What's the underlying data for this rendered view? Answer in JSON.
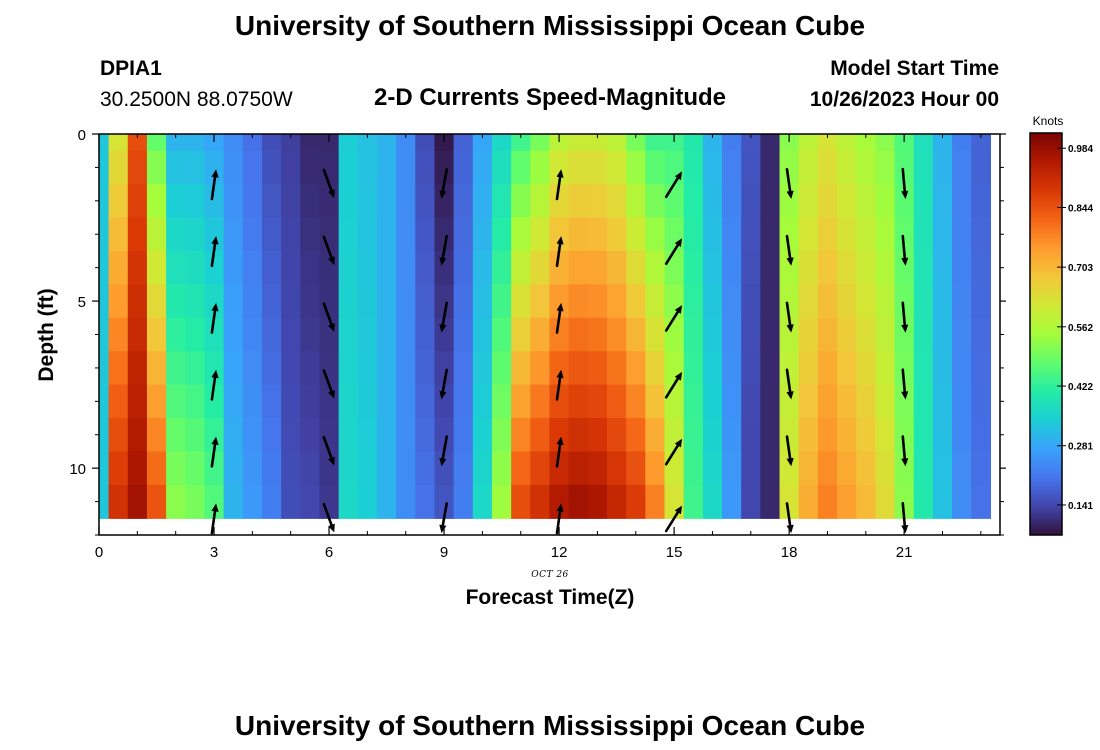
{
  "page_title": "University of Southern Mississippi Ocean Cube",
  "footer_title": "University of Southern Mississippi Ocean Cube",
  "station": {
    "id": "DPIA1",
    "location": "30.2500N  88.0750W"
  },
  "model": {
    "label": "Model Start Time",
    "time": "10/26/2023 Hour 00"
  },
  "chart_data": {
    "type": "heatmap",
    "title": "2-D Currents Speed-Magnitude",
    "xlabel": "Forecast Time(Z)",
    "ylabel": "Depth (ft)",
    "date_annotation": "OCT 26",
    "xlim": [
      0,
      23.5
    ],
    "ylim": [
      12,
      0
    ],
    "x_ticks": [
      0,
      3,
      6,
      9,
      12,
      15,
      18,
      21
    ],
    "y_ticks": [
      0,
      5,
      10
    ],
    "hours": [
      0,
      0.5,
      1,
      1.5,
      2,
      2.5,
      3,
      3.5,
      4,
      4.5,
      5,
      5.5,
      6,
      6.5,
      7,
      7.5,
      8,
      8.5,
      9,
      9.5,
      10,
      10.5,
      11,
      11.5,
      12,
      12.5,
      13,
      13.5,
      14,
      14.5,
      15,
      15.5,
      16,
      16.5,
      17,
      17.5,
      18,
      18.5,
      19,
      19.5,
      20,
      20.5,
      21,
      21.5,
      22,
      22.5,
      23
    ],
    "depths": [
      0,
      1,
      2,
      3,
      4,
      5,
      6,
      7,
      8,
      9,
      10,
      11
    ],
    "speed_top": [
      0.33,
      0.62,
      0.85,
      0.48,
      0.3,
      0.3,
      0.28,
      0.24,
      0.2,
      0.15,
      0.13,
      0.1,
      0.1,
      0.34,
      0.32,
      0.3,
      0.24,
      0.15,
      0.08,
      0.18,
      0.28,
      0.36,
      0.44,
      0.5,
      0.58,
      0.6,
      0.6,
      0.58,
      0.5,
      0.44,
      0.44,
      0.4,
      0.3,
      0.22,
      0.16,
      0.1,
      0.52,
      0.58,
      0.62,
      0.58,
      0.55,
      0.52,
      0.46,
      0.38,
      0.3,
      0.22,
      0.18
    ],
    "speed_bottom": [
      0.33,
      0.9,
      0.97,
      0.84,
      0.52,
      0.5,
      0.46,
      0.3,
      0.26,
      0.22,
      0.15,
      0.14,
      0.12,
      0.36,
      0.34,
      0.3,
      0.24,
      0.2,
      0.16,
      0.22,
      0.36,
      0.54,
      0.85,
      0.9,
      0.95,
      0.97,
      0.96,
      0.92,
      0.88,
      0.78,
      0.62,
      0.44,
      0.36,
      0.26,
      0.14,
      0.1,
      0.62,
      0.72,
      0.78,
      0.74,
      0.7,
      0.64,
      0.52,
      0.4,
      0.32,
      0.24,
      0.2
    ],
    "arrows": {
      "times": [
        3,
        6,
        9,
        12,
        15,
        18,
        21
      ],
      "depths": [
        1.5,
        3.5,
        5.5,
        7.5,
        9.5,
        11.5
      ],
      "direction_deg": [
        8,
        160,
        190,
        8,
        32,
        172,
        175
      ],
      "note": "direction measured clockwise from up (north); 0 = pointing up"
    },
    "colorbar": {
      "label": "Knots",
      "min": 0.07,
      "max": 1.02,
      "ticks": [
        0.141,
        0.281,
        0.422,
        0.562,
        0.703,
        0.844,
        0.984
      ],
      "tick_labels": [
        "0.141",
        "0.281",
        "0.422",
        "0.562",
        "0.703",
        "0.844",
        "0.984"
      ],
      "colors": [
        "#30123b",
        "#4145ab",
        "#4675ed",
        "#39a2fc",
        "#1bcfd4",
        "#24eca6",
        "#61fc6c",
        "#a4fc3b",
        "#d1e834",
        "#f3c63a",
        "#fe9b2d",
        "#f36315",
        "#d93806",
        "#b11901",
        "#7a0402"
      ]
    }
  }
}
